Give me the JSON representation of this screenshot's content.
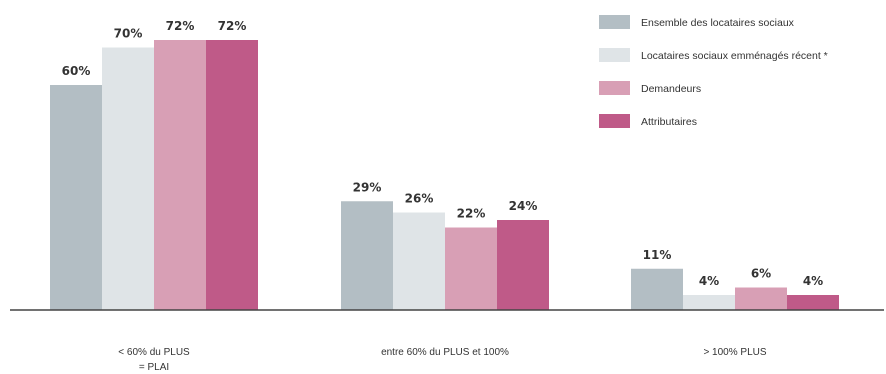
{
  "chart_data": {
    "type": "bar",
    "categories": [
      [
        "< 60% du PLUS",
        "= PLAI"
      ],
      [
        "entre 60% du PLUS et 100%"
      ],
      [
        "> 100% PLUS"
      ]
    ],
    "series": [
      {
        "name": "Ensemble des locataires sociaux",
        "color": "#b3bec4",
        "values": [
          60,
          29,
          11
        ],
        "labels": [
          "60%",
          "29%",
          "11%"
        ]
      },
      {
        "name": "Locataires sociaux emménagés récent *",
        "color": "#dfe4e7",
        "values": [
          70,
          26,
          4
        ],
        "labels": [
          "70%",
          "26%",
          "4%"
        ]
      },
      {
        "name": "Demandeurs",
        "color": "#d89fb5",
        "values": [
          72,
          22,
          6
        ],
        "labels": [
          "72%",
          "22%",
          "6%"
        ]
      },
      {
        "name": "Attributaires",
        "color": "#bf5a88",
        "values": [
          72,
          24,
          4
        ],
        "labels": [
          "72%",
          "24%",
          "4%"
        ]
      }
    ],
    "ylim": [
      0,
      100
    ],
    "grid": false,
    "legend": "top-right",
    "title": "",
    "xlabel": "",
    "ylabel": ""
  }
}
